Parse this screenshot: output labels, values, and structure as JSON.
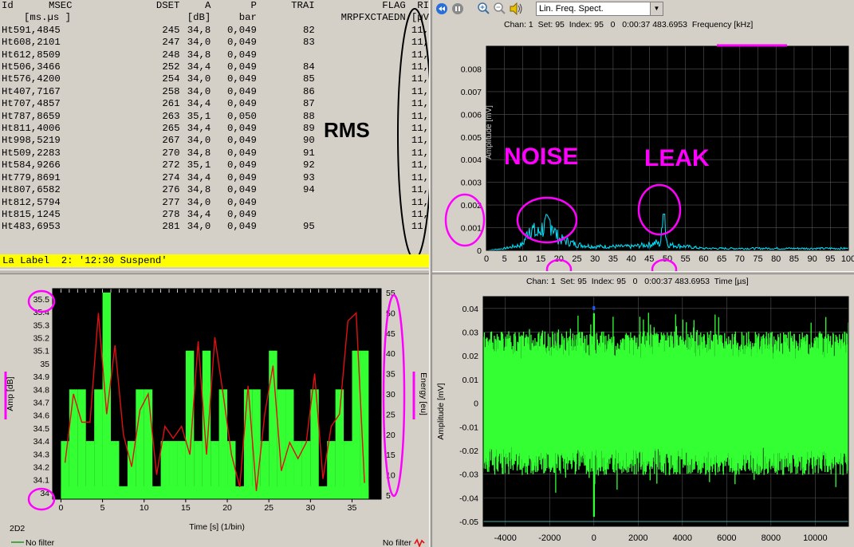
{
  "table": {
    "headers": [
      "Id",
      "MSEC",
      "DSET",
      "A",
      "P",
      "TRAI",
      "FLAG",
      "RI"
    ],
    "units": [
      "",
      "[ms.µs ]",
      "",
      "[dB]",
      "bar",
      "",
      "MRPFXCTAEDN",
      "[µV"
    ],
    "rows": [
      [
        "Ht591,4845",
        "245",
        "34,8",
        "0,049",
        "82",
        "",
        "11,"
      ],
      [
        "Ht608,2101",
        "247",
        "34,0",
        "0,049",
        "83",
        "",
        "11,"
      ],
      [
        "Ht612,8509",
        "248",
        "34,8",
        "0,049",
        "",
        "",
        "11,"
      ],
      [
        "Ht506,3466",
        "252",
        "34,4",
        "0,049",
        "84",
        "",
        "11,"
      ],
      [
        "Ht576,4200",
        "254",
        "34,0",
        "0,049",
        "85",
        "",
        "11,"
      ],
      [
        "Ht407,7167",
        "258",
        "34,0",
        "0,049",
        "86",
        "",
        "11,"
      ],
      [
        "Ht707,4857",
        "261",
        "34,4",
        "0,049",
        "87",
        "",
        "11,"
      ],
      [
        "Ht787,8659",
        "263",
        "35,1",
        "0,050",
        "88",
        "",
        "11,"
      ],
      [
        "Ht811,4006",
        "265",
        "34,4",
        "0,049",
        "89",
        "",
        "11,"
      ],
      [
        "Ht998,5219",
        "267",
        "34,0",
        "0,049",
        "90",
        "",
        "11,"
      ],
      [
        "Ht509,2283",
        "270",
        "34,8",
        "0,049",
        "91",
        "",
        "11,"
      ],
      [
        "Ht584,9266",
        "272",
        "35,1",
        "0,049",
        "92",
        "",
        "11,"
      ],
      [
        "Ht779,8691",
        "274",
        "34,4",
        "0,049",
        "93",
        "",
        "11,"
      ],
      [
        "Ht807,6582",
        "276",
        "34,8",
        "0,049",
        "94",
        "",
        "11,"
      ],
      [
        "Ht812,5794",
        "277",
        "34,0",
        "0,049",
        "",
        "",
        "11,"
      ],
      [
        "Ht815,1245",
        "278",
        "34,4",
        "0,049",
        "",
        "",
        "11,"
      ],
      [
        "Ht483,6953",
        "281",
        "34,0",
        "0,049",
        "95",
        "",
        "11,"
      ]
    ],
    "label_bar": "La Label  2: '12:30 Suspend'",
    "annotation": "RMS"
  },
  "spectrum": {
    "mode": "Lin. Freq. Spect.",
    "info": "Chan: 1  Set: 95  Index: 95   0   0:00:37 483.6953  Frequency [kHz]",
    "ylabel": "Amplitude [mV]",
    "annot_noise": "NOISE",
    "annot_leak": "LEAK"
  },
  "waveform": {
    "info": "Chan: 1  Set: 95  Index: 95   0   0:00:37 483.6953  Time [µs]",
    "ylabel": "Amplitude [mV]"
  },
  "histogram": {
    "title_2d": "2D2",
    "xlabel": "Time [s] (1/bin)",
    "ylabel_left": "Amp [dB]",
    "ylabel_right": "Energy [eu]",
    "legend_left": "No filter",
    "legend_right": "No filter"
  },
  "colors": {
    "plot_bg": "#000000",
    "spectrum_line": "#00e5ff",
    "waveform_line": "#33ff33",
    "bar_green": "#33ff33",
    "energy_red": "#e01010",
    "annot_magenta": "#ff00ff",
    "label_bar": "#ffff00"
  },
  "chart_data": [
    {
      "type": "line",
      "name": "spectrum",
      "x": [
        0,
        5,
        10,
        11,
        12,
        13,
        14,
        15,
        16,
        17,
        18,
        19,
        20,
        25,
        30,
        40,
        45,
        47,
        48,
        49,
        50,
        55,
        60,
        70,
        80,
        90,
        100
      ],
      "y": [
        0,
        0.0001,
        0.0003,
        0.0007,
        0.0013,
        0.001,
        0.0008,
        0.0011,
        0.0012,
        0.0013,
        0.0016,
        0.0009,
        0.0006,
        0.0003,
        0.0002,
        0.0002,
        0.0003,
        0.0004,
        0.0003,
        0.0016,
        0.0003,
        0.0002,
        0.0001,
        0.0001,
        0.0001,
        0.0001,
        0.0001
      ],
      "xlabel": "Frequency [kHz]",
      "ylabel": "Amplitude [mV]",
      "xlim": [
        0,
        100
      ],
      "ylim": [
        0,
        0.009
      ],
      "xticks": [
        0,
        5,
        10,
        15,
        20,
        25,
        30,
        35,
        40,
        45,
        50,
        55,
        60,
        65,
        70,
        75,
        80,
        85,
        90,
        95,
        100
      ],
      "yticks": [
        "0",
        "0.001",
        "0.002",
        "0.003",
        "0.004",
        "0.005",
        "0.006",
        "0.007",
        "0.008"
      ],
      "grid": true
    },
    {
      "type": "line",
      "name": "waveform",
      "xlabel": "Time [µs]",
      "ylabel": "Amplitude [mV]",
      "xlim": [
        -5000,
        11500
      ],
      "ylim": [
        -0.052,
        0.045
      ],
      "xticks": [
        "-4000",
        "-2000",
        "0",
        "2000",
        "4000",
        "6000",
        "8000",
        "10000"
      ],
      "yticks": [
        "0.04",
        "0.03",
        "0.02",
        "0.01",
        "0",
        "-0.01",
        "-0.02",
        "-0.03",
        "-0.04",
        "-0.05"
      ],
      "envelope_upper": 0.022,
      "envelope_lower": -0.022,
      "grid": true
    },
    {
      "type": "bar",
      "name": "histogram",
      "xlabel": "Time [s] (1/bin)",
      "ylabel": "Amp [dB]",
      "ylim": [
        33.95,
        35.58
      ],
      "xlim": [
        -1,
        38.5
      ],
      "xticks": [
        "0",
        "5",
        "10",
        "15",
        "20",
        "25",
        "30",
        "35"
      ],
      "yticks_left": [
        "34",
        "34.1",
        "34.2",
        "34.3",
        "34.4",
        "34.5",
        "34.6",
        "34.7",
        "34.8",
        "34.9",
        "35",
        "35.1",
        "35.2",
        "35.3",
        "35.4",
        "35.5"
      ],
      "yticks_right": [
        "5",
        "10",
        "15",
        "20",
        "25",
        "30",
        "35",
        "40",
        "45",
        "50",
        "55"
      ],
      "y2lim": [
        4,
        56
      ],
      "bars": [
        {
          "x": 0,
          "v": 34.4
        },
        {
          "x": 1,
          "v": 34.8
        },
        {
          "x": 2,
          "v": 34.8
        },
        {
          "x": 3,
          "v": 34.4
        },
        {
          "x": 4,
          "v": 34.8
        },
        {
          "x": 5,
          "v": 35.55
        },
        {
          "x": 6,
          "v": 34.4
        },
        {
          "x": 7,
          "v": 34.0
        },
        {
          "x": 8,
          "v": 34.4
        },
        {
          "x": 9,
          "v": 34.8
        },
        {
          "x": 10,
          "v": 34.8
        },
        {
          "x": 11,
          "v": 34.0
        },
        {
          "x": 12,
          "v": 34.4
        },
        {
          "x": 13,
          "v": 34.4
        },
        {
          "x": 14,
          "v": 34.4
        },
        {
          "x": 15,
          "v": 35.1
        },
        {
          "x": 16,
          "v": 34.4
        },
        {
          "x": 17,
          "v": 35.1
        },
        {
          "x": 18,
          "v": 34.4
        },
        {
          "x": 19,
          "v": 34.8
        },
        {
          "x": 20,
          "v": 34.4
        },
        {
          "x": 21,
          "v": 34.0
        },
        {
          "x": 22,
          "v": 34.8
        },
        {
          "x": 23,
          "v": 34.8
        },
        {
          "x": 24,
          "v": 34.4
        },
        {
          "x": 25,
          "v": 35.1
        },
        {
          "x": 26,
          "v": 34.8
        },
        {
          "x": 27,
          "v": 34.8
        },
        {
          "x": 28,
          "v": 34.4
        },
        {
          "x": 29,
          "v": 34.4
        },
        {
          "x": 30,
          "v": 34.8
        },
        {
          "x": 31,
          "v": 34.0
        },
        {
          "x": 32,
          "v": 34.4
        },
        {
          "x": 33,
          "v": 34.8
        },
        {
          "x": 34,
          "v": 34.4
        },
        {
          "x": 35,
          "v": 35.1
        },
        {
          "x": 36,
          "v": 35.1
        }
      ],
      "energy": [
        {
          "x": 0.5,
          "e": 13
        },
        {
          "x": 1.5,
          "e": 30
        },
        {
          "x": 2.5,
          "e": 23
        },
        {
          "x": 3.5,
          "e": 23
        },
        {
          "x": 4.5,
          "e": 50
        },
        {
          "x": 5.5,
          "e": 25
        },
        {
          "x": 6.5,
          "e": 42
        },
        {
          "x": 7.5,
          "e": 20
        },
        {
          "x": 8.5,
          "e": 12
        },
        {
          "x": 9.5,
          "e": 26
        },
        {
          "x": 10.5,
          "e": 30
        },
        {
          "x": 11.5,
          "e": 10
        },
        {
          "x": 12.5,
          "e": 22
        },
        {
          "x": 13.5,
          "e": 19
        },
        {
          "x": 14.5,
          "e": 22
        },
        {
          "x": 15.5,
          "e": 15
        },
        {
          "x": 16.5,
          "e": 43
        },
        {
          "x": 17.5,
          "e": 15
        },
        {
          "x": 18.5,
          "e": 44
        },
        {
          "x": 19.5,
          "e": 30
        },
        {
          "x": 20.5,
          "e": 15
        },
        {
          "x": 21.5,
          "e": 7
        },
        {
          "x": 22.5,
          "e": 32
        },
        {
          "x": 23.5,
          "e": 6
        },
        {
          "x": 24.5,
          "e": 25
        },
        {
          "x": 25.5,
          "e": 37
        },
        {
          "x": 26.5,
          "e": 11
        },
        {
          "x": 27.5,
          "e": 18
        },
        {
          "x": 28.5,
          "e": 14
        },
        {
          "x": 29.5,
          "e": 18
        },
        {
          "x": 30.5,
          "e": 35
        },
        {
          "x": 31.5,
          "e": 9
        },
        {
          "x": 32.5,
          "e": 22
        },
        {
          "x": 33.5,
          "e": 25
        },
        {
          "x": 34.5,
          "e": 48
        },
        {
          "x": 35.5,
          "e": 50
        },
        {
          "x": 36.5,
          "e": 8
        }
      ]
    }
  ]
}
